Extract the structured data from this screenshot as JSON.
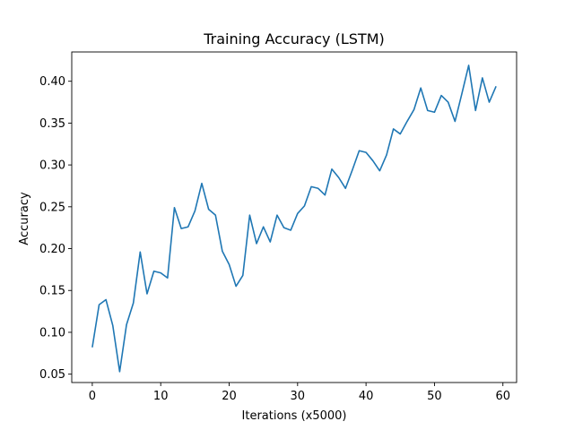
{
  "chart_data": {
    "type": "line",
    "title": "Training Accuracy (LSTM)",
    "xlabel": "Iterations (x5000)",
    "ylabel": "Accuracy",
    "xlim": [
      -3,
      62
    ],
    "ylim": [
      0.04,
      0.435
    ],
    "xticks": [
      0,
      10,
      20,
      30,
      40,
      50,
      60
    ],
    "yticks": [
      0.05,
      0.1,
      0.15,
      0.2,
      0.25,
      0.3,
      0.35,
      0.4
    ],
    "xtick_labels": [
      "0",
      "10",
      "20",
      "30",
      "40",
      "50",
      "60"
    ],
    "ytick_labels": [
      "0.05",
      "0.10",
      "0.15",
      "0.20",
      "0.25",
      "0.30",
      "0.35",
      "0.40"
    ],
    "grid": false,
    "series": [
      {
        "color": "#1f77b4",
        "x": [
          0,
          1,
          2,
          3,
          4,
          5,
          6,
          7,
          8,
          9,
          10,
          11,
          12,
          13,
          14,
          15,
          16,
          17,
          18,
          19,
          20,
          21,
          22,
          23,
          24,
          25,
          26,
          27,
          28,
          29,
          30,
          31,
          32,
          33,
          34,
          35,
          36,
          37,
          38,
          39,
          40,
          41,
          42,
          43,
          44,
          45,
          46,
          47,
          48,
          49,
          50,
          51,
          52,
          53,
          54,
          55,
          56,
          57,
          58,
          59
        ],
        "y": [
          0.082,
          0.133,
          0.139,
          0.108,
          0.053,
          0.109,
          0.135,
          0.196,
          0.146,
          0.173,
          0.171,
          0.165,
          0.249,
          0.224,
          0.226,
          0.245,
          0.278,
          0.247,
          0.24,
          0.197,
          0.181,
          0.155,
          0.168,
          0.24,
          0.206,
          0.226,
          0.208,
          0.24,
          0.225,
          0.222,
          0.242,
          0.251,
          0.274,
          0.272,
          0.264,
          0.295,
          0.285,
          0.272,
          0.294,
          0.317,
          0.315,
          0.305,
          0.293,
          0.312,
          0.343,
          0.337,
          0.352,
          0.366,
          0.392,
          0.365,
          0.363,
          0.383,
          0.375,
          0.352,
          0.385,
          0.419,
          0.365,
          0.404,
          0.375,
          0.394
        ]
      }
    ]
  }
}
